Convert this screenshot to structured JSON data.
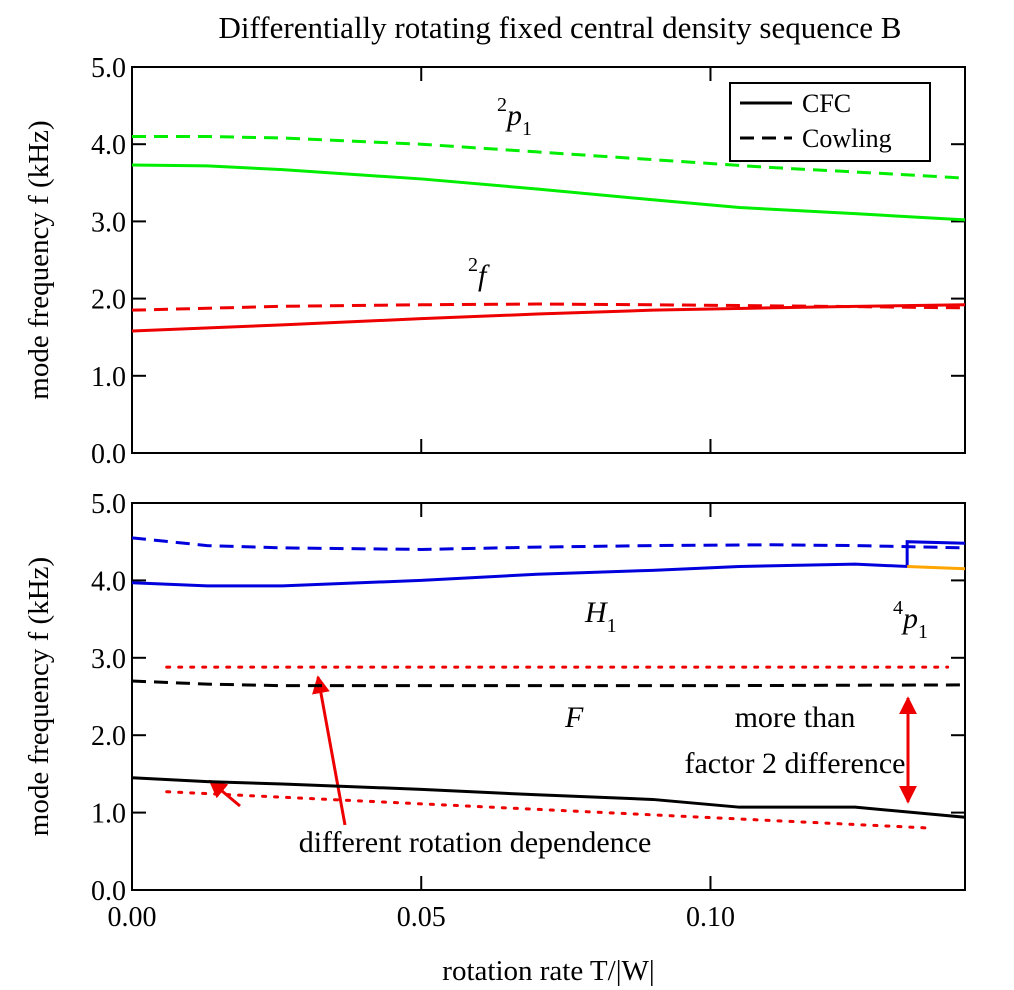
{
  "chart_data": [
    {
      "type": "line",
      "title": "Differentially rotating fixed central density sequence B",
      "ylabel": "mode frequency f (kHz)",
      "xlim": [
        0,
        0.144
      ],
      "ylim": [
        0,
        5
      ],
      "yticks": [
        {
          "value": 0,
          "label": "0.0"
        },
        {
          "value": 1,
          "label": "1.0"
        },
        {
          "value": 2,
          "label": "2.0"
        },
        {
          "value": 3,
          "label": "3.0"
        },
        {
          "value": 4,
          "label": "4.0"
        },
        {
          "value": 5,
          "label": "5.0"
        }
      ],
      "legend": {
        "position": "upper right",
        "entries": [
          {
            "label": "CFC",
            "dash": "solid"
          },
          {
            "label": "Cowling",
            "dash": "dashed"
          }
        ]
      },
      "series": [
        {
          "color": "#00ee00",
          "dash": "dashed",
          "x": [
            0,
            0.013,
            0.026,
            0.05,
            0.07,
            0.09,
            0.11,
            0.13,
            0.144
          ],
          "values": [
            4.1,
            4.1,
            4.08,
            4.0,
            3.9,
            3.8,
            3.7,
            3.62,
            3.56
          ]
        },
        {
          "color": "#00ee00",
          "dash": "solid",
          "x": [
            0,
            0.013,
            0.026,
            0.05,
            0.07,
            0.09,
            0.105,
            0.125,
            0.144
          ],
          "values": [
            3.73,
            3.72,
            3.67,
            3.55,
            3.42,
            3.28,
            3.18,
            3.1,
            3.02
          ]
        },
        {
          "color": "#ee0000",
          "dash": "dashed",
          "x": [
            0,
            0.026,
            0.05,
            0.07,
            0.09,
            0.12,
            0.144
          ],
          "values": [
            1.85,
            1.9,
            1.92,
            1.93,
            1.92,
            1.9,
            1.88
          ]
        },
        {
          "color": "#ee0000",
          "dash": "solid",
          "x": [
            0,
            0.026,
            0.05,
            0.07,
            0.09,
            0.11,
            0.125,
            0.144
          ],
          "values": [
            1.58,
            1.66,
            1.74,
            1.8,
            1.85,
            1.88,
            1.9,
            1.92
          ]
        }
      ],
      "annotations": [
        {
          "sup": "2",
          "main": "p",
          "sub": "1"
        },
        {
          "sup": "2",
          "main": "f"
        }
      ]
    },
    {
      "type": "line",
      "xlabel": "rotation rate T/|W|",
      "ylabel": "mode frequency f (kHz)",
      "xlim": [
        0,
        0.144
      ],
      "ylim": [
        0,
        5
      ],
      "xticks": [
        {
          "value": 0,
          "label": "0.00"
        },
        0.05,
        {
          "value": 0.1,
          "label": "0.10"
        }
      ],
      "yticks": [
        {
          "value": 0,
          "label": "0.0"
        },
        {
          "value": 1,
          "label": "1.0"
        },
        {
          "value": 2,
          "label": "2.0"
        },
        {
          "value": 3,
          "label": "3.0"
        },
        {
          "value": 4,
          "label": "4.0"
        },
        {
          "value": 5,
          "label": "5.0"
        }
      ],
      "series": [
        {
          "color": "#0000dd",
          "dash": "dashed",
          "x": [
            0,
            0.013,
            0.026,
            0.05,
            0.07,
            0.09,
            0.11,
            0.125,
            0.144
          ],
          "values": [
            4.55,
            4.45,
            4.42,
            4.4,
            4.43,
            4.45,
            4.46,
            4.45,
            4.42
          ]
        },
        {
          "color": "#0000dd",
          "dash": "solid",
          "x": [
            0,
            0.013,
            0.026,
            0.05,
            0.07,
            0.09,
            0.105,
            0.125,
            0.134,
            0.134,
            0.144
          ],
          "values": [
            3.97,
            3.93,
            3.93,
            4.0,
            4.08,
            4.13,
            4.18,
            4.21,
            4.18,
            4.5,
            4.48
          ]
        },
        {
          "color": "#ffa500",
          "dash": "solid",
          "x": [
            0.134,
            0.144
          ],
          "values": [
            4.18,
            4.15
          ]
        },
        {
          "color": "#000000",
          "dash": "dashed",
          "x": [
            0,
            0.013,
            0.026,
            0.05,
            0.1,
            0.144
          ],
          "values": [
            2.7,
            2.66,
            2.64,
            2.64,
            2.64,
            2.65
          ]
        },
        {
          "color": "#000000",
          "dash": "solid",
          "x": [
            0,
            0.013,
            0.026,
            0.05,
            0.07,
            0.09,
            0.105,
            0.125,
            0.144
          ],
          "values": [
            1.45,
            1.4,
            1.37,
            1.3,
            1.23,
            1.17,
            1.07,
            1.07,
            0.94
          ]
        },
        {
          "color": "#ee0000",
          "dash": "dotted",
          "x": [
            0.006,
            0.141
          ],
          "values": [
            2.88,
            2.88
          ]
        },
        {
          "color": "#ee0000",
          "dash": "dotted",
          "x": [
            0.006,
            0.138
          ],
          "values": [
            1.27,
            0.8
          ]
        }
      ],
      "annotations": [
        {
          "main": "H",
          "sub": "1"
        },
        {
          "sup": "4",
          "main": "p",
          "sub": "1"
        },
        {
          "main": "F"
        },
        {
          "text": "more than"
        },
        {
          "text": "factor 2 difference"
        },
        {
          "text": "different rotation dependence"
        }
      ]
    }
  ]
}
